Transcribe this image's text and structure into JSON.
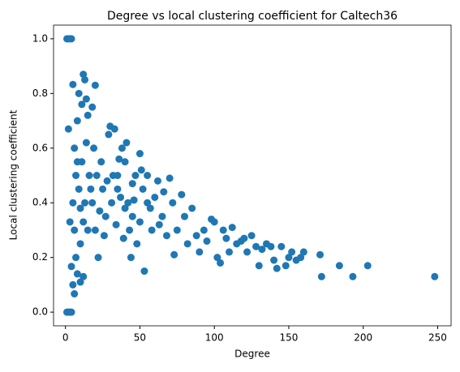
{
  "chart_data": {
    "type": "scatter",
    "title": "Degree vs local clustering coefficient for Caltech36",
    "x_label": "Degree",
    "y_label": "Local clustering coefficient",
    "color": "#1f77b4",
    "x": [
      1,
      2,
      3,
      4,
      1,
      2,
      3,
      4,
      5,
      6,
      8,
      10,
      12,
      7,
      4,
      3,
      2,
      5,
      9,
      12,
      13,
      14,
      11,
      20,
      18,
      15,
      8,
      6,
      7,
      5,
      6,
      10,
      12,
      9,
      11,
      14,
      16,
      18,
      20,
      22,
      19,
      24,
      25,
      27,
      29,
      30,
      33,
      32,
      35,
      38,
      40,
      42,
      45,
      43,
      47,
      50,
      52,
      55,
      48,
      44,
      53,
      58,
      60,
      62,
      65,
      68,
      70,
      72,
      75,
      73,
      78,
      80,
      82,
      85,
      88,
      90,
      93,
      95,
      98,
      100,
      102,
      104,
      106,
      108,
      110,
      112,
      115,
      118,
      120,
      122,
      125,
      128,
      130,
      132,
      135,
      138,
      140,
      142,
      145,
      148,
      150,
      152,
      155,
      158,
      160,
      171,
      172,
      184,
      193,
      203,
      248,
      35,
      37,
      40,
      45,
      50,
      55,
      57,
      63,
      66,
      28,
      26,
      34,
      39,
      46,
      51,
      41,
      36,
      31,
      23,
      17,
      21,
      13,
      15,
      10,
      8
    ],
    "values": [
      1,
      1,
      1,
      1,
      0,
      0,
      0,
      0,
      0.1,
      0.067,
      0.14,
      0.11,
      0.13,
      0.2,
      0.167,
      0.33,
      0.67,
      0.833,
      0.8,
      0.87,
      0.85,
      0.78,
      0.76,
      0.83,
      0.75,
      0.72,
      0.7,
      0.6,
      0.5,
      0.4,
      0.3,
      0.25,
      0.33,
      0.45,
      0.55,
      0.62,
      0.5,
      0.4,
      0.3,
      0.2,
      0.6,
      0.55,
      0.45,
      0.35,
      0.65,
      0.68,
      0.67,
      0.5,
      0.45,
      0.6,
      0.55,
      0.4,
      0.35,
      0.3,
      0.5,
      0.58,
      0.45,
      0.4,
      0.25,
      0.2,
      0.15,
      0.3,
      0.42,
      0.48,
      0.35,
      0.28,
      0.49,
      0.4,
      0.3,
      0.21,
      0.43,
      0.35,
      0.25,
      0.38,
      0.28,
      0.22,
      0.3,
      0.26,
      0.34,
      0.33,
      0.2,
      0.18,
      0.3,
      0.27,
      0.22,
      0.31,
      0.25,
      0.26,
      0.27,
      0.22,
      0.28,
      0.24,
      0.17,
      0.23,
      0.25,
      0.24,
      0.19,
      0.16,
      0.24,
      0.17,
      0.2,
      0.22,
      0.19,
      0.2,
      0.22,
      0.21,
      0.13,
      0.17,
      0.13,
      0.17,
      0.13,
      0.5,
      0.42,
      0.38,
      0.47,
      0.33,
      0.5,
      0.38,
      0.32,
      0.44,
      0.48,
      0.28,
      0.32,
      0.27,
      0.41,
      0.52,
      0.62,
      0.56,
      0.4,
      0.37,
      0.45,
      0.5,
      0.4,
      0.3,
      0.38,
      0.55
    ],
    "xlim": [
      -8,
      259
    ],
    "ylim": [
      -0.05,
      1.05
    ],
    "xticks": [
      0,
      50,
      100,
      150,
      200,
      250
    ],
    "yticks": [
      {
        "value": 0,
        "label": "0.0"
      },
      0.2,
      0.4,
      0.6,
      0.8,
      {
        "value": 1,
        "label": "1.0"
      }
    ]
  }
}
